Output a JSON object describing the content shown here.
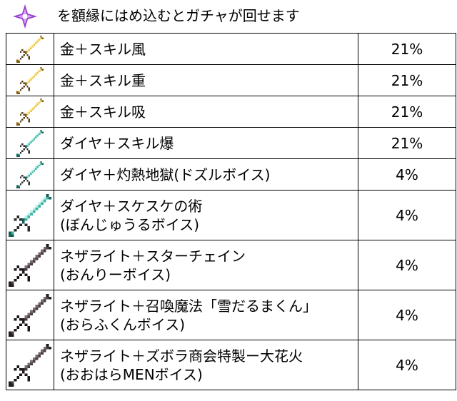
{
  "header": {
    "icon": "nether-star-icon",
    "text": "を額縁にはめ込むとガチャが回せます"
  },
  "rows": [
    {
      "icon": "gold-sword-icon",
      "name_lines": [
        "金＋スキル風"
      ],
      "rate": "21%"
    },
    {
      "icon": "gold-sword-icon",
      "name_lines": [
        "金＋スキル重"
      ],
      "rate": "21%"
    },
    {
      "icon": "gold-sword-icon",
      "name_lines": [
        "金＋スキル吸"
      ],
      "rate": "21%"
    },
    {
      "icon": "diamond-sword-icon",
      "name_lines": [
        "ダイヤ＋スキル爆"
      ],
      "rate": "21%"
    },
    {
      "icon": "diamond-sword-icon",
      "name_lines": [
        "ダイヤ＋灼熱地獄(ドズルボイス)"
      ],
      "rate": "4%"
    },
    {
      "icon": "diamond-sword-icon",
      "name_lines": [
        "ダイヤ＋スケスケの術",
        "(ぼんじゅうるボイス)"
      ],
      "rate": "4%"
    },
    {
      "icon": "netherite-sword-icon",
      "name_lines": [
        "ネザライト＋スターチェイン",
        "(おんりーボイス)"
      ],
      "rate": "4%"
    },
    {
      "icon": "netherite-sword-icon",
      "name_lines": [
        "ネザライト＋召喚魔法「雪だるまくん」",
        "(おらふくんボイス)"
      ],
      "rate": "4%"
    },
    {
      "icon": "netherite-sword-icon",
      "name_lines": [
        "ネザライト＋ズボラ商会特製ー大花火",
        "(おおはらMENボイス)"
      ],
      "rate": "4%"
    }
  ],
  "colors": {
    "gold": "#e8c14a",
    "diamond": "#3fb3a3",
    "netherite": "#4a3e45",
    "nether_star": "#b85ee0"
  }
}
